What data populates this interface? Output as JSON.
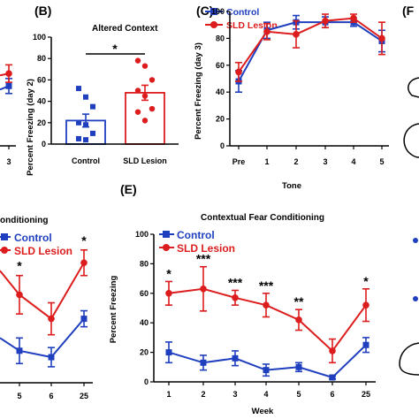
{
  "colors": {
    "control": "#1f3fbf",
    "lesion": "#dd1d1d",
    "axis": "#000000"
  },
  "chart_data": [
    {
      "id": "A",
      "panel_letter": "",
      "type": "line",
      "partial": true,
      "title": "",
      "xlabel": "",
      "ylabel": "",
      "x_ticks": [
        "3"
      ],
      "y_ticks": [],
      "series": [
        {
          "name": "Control",
          "values": [
            48
          ],
          "errors": [
            6
          ]
        },
        {
          "name": "SLD Lesion",
          "values": [
            58
          ],
          "errors": [
            7
          ]
        }
      ],
      "ylim": [
        0,
        100
      ]
    },
    {
      "id": "B",
      "panel_letter": "(B)",
      "type": "bar",
      "title": "Altered Context",
      "xlabel": "",
      "ylabel": "Percent Freezing (day 2)",
      "categories": [
        "Control",
        "SLD Lesion"
      ],
      "values": [
        22,
        48
      ],
      "errors": [
        6,
        7
      ],
      "points": [
        [
          52,
          44,
          35,
          20,
          18,
          10,
          5,
          4
        ],
        [
          78,
          73,
          60,
          50,
          45,
          33,
          30,
          22
        ]
      ],
      "ylim": [
        0,
        100
      ],
      "y_ticks": [
        "0",
        "20",
        "40",
        "60",
        "80",
        "100"
      ],
      "significance": "*"
    },
    {
      "id": "C",
      "panel_letter": "(C)",
      "type": "line",
      "title": "",
      "xlabel": "Tone",
      "ylabel": "Percent Freezing (day 3)",
      "categories": [
        "Pre",
        "1",
        "2",
        "3",
        "4",
        "5"
      ],
      "series": [
        {
          "name": "Control",
          "values": [
            48,
            86,
            92,
            92,
            92,
            78
          ],
          "errors": [
            8,
            6,
            5,
            4,
            3,
            8
          ]
        },
        {
          "name": "SLD Lesion",
          "values": [
            55,
            85,
            83,
            93,
            95,
            80
          ],
          "errors": [
            7,
            6,
            10,
            5,
            3,
            12
          ]
        }
      ],
      "ylim": [
        0,
        100
      ],
      "y_ticks": [
        "0",
        "20",
        "40",
        "60",
        "80",
        "100"
      ],
      "legend": "top-left"
    },
    {
      "id": "D",
      "panel_letter": "",
      "type": "line",
      "partial": true,
      "title": "onditioning",
      "xlabel": "",
      "ylabel": "",
      "categories": [
        "5",
        "6",
        "25"
      ],
      "series": [
        {
          "name": "Control",
          "values": [
            20,
            16,
            40
          ],
          "errors": [
            8,
            6,
            5
          ]
        },
        {
          "name": "SLD Lesion",
          "values": [
            55,
            40,
            75
          ],
          "errors": [
            12,
            10,
            8
          ]
        }
      ],
      "ylim": [
        0,
        100
      ],
      "significance": [
        "*",
        "",
        "*"
      ],
      "legend": "top-left"
    },
    {
      "id": "E",
      "panel_letter": "(E)",
      "type": "line",
      "title": "Contextual Fear Conditioning",
      "xlabel": "Week",
      "ylabel": "Percent Freezing",
      "categories": [
        "1",
        "2",
        "3",
        "4",
        "5",
        "6",
        "25"
      ],
      "series": [
        {
          "name": "Control",
          "values": [
            20,
            13,
            16,
            8,
            10,
            3,
            25
          ],
          "errors": [
            7,
            5,
            5,
            4,
            3,
            1,
            5
          ]
        },
        {
          "name": "SLD Lesion",
          "values": [
            60,
            63,
            57,
            52,
            42,
            21,
            52
          ],
          "errors": [
            8,
            15,
            5,
            8,
            7,
            8,
            11
          ]
        }
      ],
      "ylim": [
        0,
        100
      ],
      "y_ticks": [
        "0",
        "20",
        "40",
        "60",
        "80",
        "100"
      ],
      "significance": [
        "*",
        "***",
        "***",
        "***",
        "**",
        "",
        "*"
      ],
      "legend": "top-left"
    },
    {
      "id": "F",
      "panel_letter": "(F",
      "type": "other",
      "partial": true
    }
  ]
}
